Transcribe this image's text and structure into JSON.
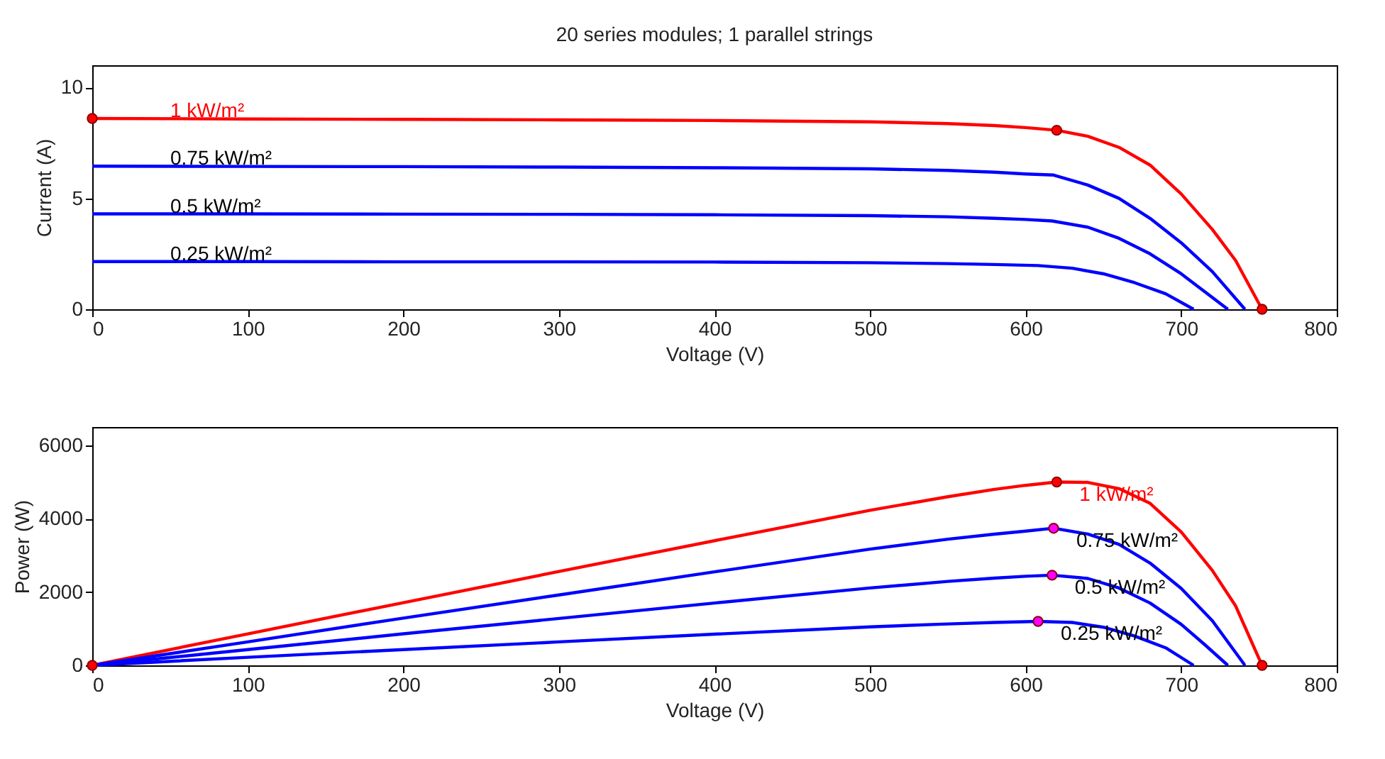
{
  "chart_data": [
    {
      "type": "line",
      "title": "20 series modules; 1 parallel strings",
      "xlabel": "Voltage (V)",
      "ylabel": "Current (A)",
      "xlim": [
        0,
        800
      ],
      "xticks": [
        0,
        100,
        200,
        300,
        400,
        500,
        600,
        700,
        800
      ],
      "ylim": [
        0,
        11
      ],
      "yticks": [
        0,
        5,
        10
      ],
      "series": [
        {
          "name": "1 kW/m²",
          "color": "#ff0000",
          "x": [
            0,
            100,
            200,
            300,
            400,
            500,
            550,
            580,
            600,
            620,
            640,
            660,
            680,
            700,
            720,
            735,
            752
          ],
          "values": [
            8.6,
            8.58,
            8.56,
            8.54,
            8.51,
            8.45,
            8.37,
            8.28,
            8.19,
            8.07,
            7.8,
            7.3,
            6.5,
            5.2,
            3.6,
            2.2,
            0
          ]
        },
        {
          "name": "0.75 kW/m²",
          "color": "#0000ff",
          "x": [
            0,
            100,
            200,
            300,
            400,
            500,
            550,
            580,
            600,
            618,
            640,
            660,
            680,
            700,
            720,
            741
          ],
          "values": [
            6.45,
            6.44,
            6.43,
            6.41,
            6.38,
            6.33,
            6.26,
            6.18,
            6.1,
            6.05,
            5.6,
            5.0,
            4.1,
            3.0,
            1.7,
            0
          ]
        },
        {
          "name": "0.5 kW/m²",
          "color": "#0000ff",
          "x": [
            0,
            100,
            200,
            300,
            400,
            500,
            550,
            580,
            600,
            617,
            640,
            660,
            680,
            700,
            715,
            730
          ],
          "values": [
            4.3,
            4.3,
            4.29,
            4.28,
            4.26,
            4.22,
            4.17,
            4.1,
            4.05,
            3.98,
            3.7,
            3.2,
            2.5,
            1.6,
            0.8,
            0
          ]
        },
        {
          "name": "0.25 kW/m²",
          "color": "#0000ff",
          "x": [
            0,
            100,
            200,
            300,
            400,
            500,
            550,
            580,
            608,
            630,
            650,
            670,
            690,
            708
          ],
          "values": [
            2.15,
            2.15,
            2.14,
            2.14,
            2.13,
            2.1,
            2.06,
            2.02,
            1.97,
            1.85,
            1.6,
            1.2,
            0.7,
            0
          ]
        },
        {
          "type": "scatter",
          "marker": "circle",
          "color": "#ff0000",
          "x": [
            0,
            620,
            752
          ],
          "values": [
            8.6,
            8.07,
            0
          ]
        }
      ]
    },
    {
      "type": "line",
      "xlabel": "Voltage (V)",
      "ylabel": "Power (W)",
      "xlim": [
        0,
        800
      ],
      "xticks": [
        0,
        100,
        200,
        300,
        400,
        500,
        600,
        700,
        800
      ],
      "ylim": [
        0,
        6500
      ],
      "yticks": [
        0,
        2000,
        4000,
        6000
      ],
      "series": [
        {
          "name": "1 kW/m²",
          "color": "#ff0000",
          "x": [
            0,
            100,
            200,
            300,
            400,
            500,
            550,
            580,
            600,
            620,
            640,
            660,
            680,
            700,
            720,
            735,
            752
          ],
          "values": [
            0,
            860,
            1710,
            2560,
            3400,
            4230,
            4600,
            4800,
            4910,
            5000,
            4990,
            4820,
            4420,
            3640,
            2590,
            1620,
            0
          ]
        },
        {
          "name": "0.75 kW/m²",
          "color": "#0000ff",
          "x": [
            0,
            100,
            200,
            300,
            400,
            500,
            550,
            580,
            600,
            618,
            640,
            660,
            680,
            700,
            720,
            741
          ],
          "values": [
            0,
            640,
            1290,
            1920,
            2550,
            3170,
            3440,
            3580,
            3660,
            3740,
            3580,
            3300,
            2790,
            2100,
            1220,
            0
          ]
        },
        {
          "name": "0.5 kW/m²",
          "color": "#0000ff",
          "x": [
            0,
            100,
            200,
            300,
            400,
            500,
            550,
            580,
            600,
            617,
            640,
            660,
            680,
            700,
            715,
            730
          ],
          "values": [
            0,
            430,
            860,
            1280,
            1700,
            2110,
            2290,
            2380,
            2430,
            2460,
            2370,
            2110,
            1700,
            1120,
            570,
            0
          ]
        },
        {
          "name": "0.25 kW/m²",
          "color": "#0000ff",
          "x": [
            0,
            100,
            200,
            300,
            400,
            500,
            550,
            580,
            608,
            630,
            650,
            670,
            690,
            708
          ],
          "values": [
            0,
            220,
            430,
            640,
            850,
            1050,
            1130,
            1170,
            1200,
            1170,
            1040,
            800,
            480,
            0
          ]
        },
        {
          "type": "scatter",
          "marker": "circle",
          "color": "#ff0000",
          "x": [
            0,
            620,
            752
          ],
          "values": [
            0,
            5000,
            0
          ]
        },
        {
          "type": "scatter",
          "marker": "circle",
          "color": "#ff00ff",
          "x": [
            618,
            617,
            608
          ],
          "values": [
            3740,
            2460,
            1200
          ]
        }
      ]
    }
  ]
}
